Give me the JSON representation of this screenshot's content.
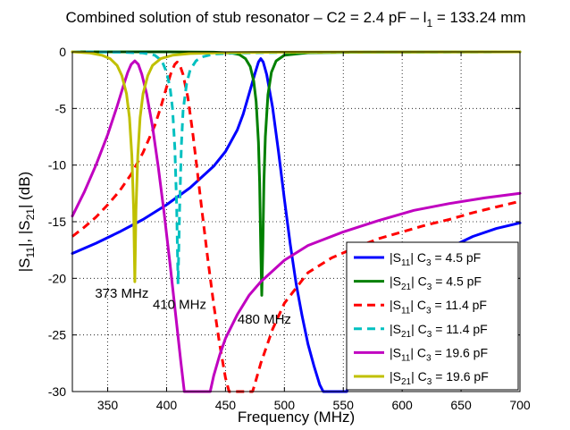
{
  "chart_data": {
    "type": "line",
    "title_parts": [
      "Combined solution of stub resonator –  C2 = 2.4 pF – l",
      "1",
      " = 133.24 mm"
    ],
    "xlabel": "Frequency (MHz)",
    "ylabel_parts": [
      "|S",
      "11",
      "|, |S",
      "21",
      "| (dB)"
    ],
    "xlim": [
      320,
      700
    ],
    "ylim": [
      -30,
      0
    ],
    "xticks": [
      350,
      400,
      450,
      500,
      550,
      600,
      650,
      700
    ],
    "yticks": [
      0,
      -5,
      -10,
      -15,
      -20,
      -25,
      -30
    ],
    "grid": "dotted",
    "legend_position": "lower-right",
    "series": [
      {
        "label_parts": [
          "|S",
          "11",
          "| C",
          "3",
          " = 4.5 pF"
        ],
        "color": "#0000ff",
        "dash": "solid",
        "points": [
          [
            320,
            -17.8
          ],
          [
            340,
            -16.9
          ],
          [
            360,
            -15.9
          ],
          [
            380,
            -14.8
          ],
          [
            400,
            -13.5
          ],
          [
            420,
            -12.0
          ],
          [
            440,
            -10.1
          ],
          [
            450,
            -8.8
          ],
          [
            460,
            -6.9
          ],
          [
            465,
            -5.5
          ],
          [
            470,
            -3.7
          ],
          [
            475,
            -1.9
          ],
          [
            478,
            -0.9
          ],
          [
            480,
            -0.6
          ],
          [
            482,
            -0.9
          ],
          [
            485,
            -2.0
          ],
          [
            490,
            -4.9
          ],
          [
            495,
            -8.8
          ],
          [
            500,
            -13.0
          ],
          [
            505,
            -17.0
          ],
          [
            510,
            -20.5
          ],
          [
            515,
            -23.3
          ],
          [
            520,
            -25.8
          ],
          [
            525,
            -27.7
          ],
          [
            530,
            -29.4
          ],
          [
            533,
            -30.0
          ],
          [
            553,
            -30.0
          ],
          [
            555,
            -29.0
          ],
          [
            560,
            -27.5
          ],
          [
            570,
            -25.0
          ],
          [
            580,
            -23.0
          ],
          [
            600,
            -20.4
          ],
          [
            620,
            -18.6
          ],
          [
            640,
            -17.3
          ],
          [
            660,
            -16.3
          ],
          [
            680,
            -15.6
          ],
          [
            700,
            -15.1
          ]
        ]
      },
      {
        "label_parts": [
          "|S",
          "21",
          "| C",
          "3",
          " = 4.5 pF"
        ],
        "color": "#008000",
        "dash": "solid",
        "points": [
          [
            320,
            0
          ],
          [
            400,
            0
          ],
          [
            440,
            -0.03
          ],
          [
            455,
            -0.1
          ],
          [
            462,
            -0.25
          ],
          [
            467,
            -0.6
          ],
          [
            471,
            -1.3
          ],
          [
            474,
            -2.6
          ],
          [
            476,
            -4.4
          ],
          [
            478,
            -8.0
          ],
          [
            479,
            -11.5
          ],
          [
            480,
            -17.5
          ],
          [
            480.8,
            -21.5
          ],
          [
            481.6,
            -17.5
          ],
          [
            482.6,
            -11.5
          ],
          [
            483.8,
            -7.5
          ],
          [
            486,
            -3.8
          ],
          [
            489,
            -1.8
          ],
          [
            493,
            -0.8
          ],
          [
            500,
            -0.3
          ],
          [
            520,
            -0.08
          ],
          [
            560,
            -0.03
          ],
          [
            700,
            0
          ]
        ]
      },
      {
        "label_parts": [
          "|S",
          "11",
          "| C",
          "3",
          " = 11.4 pF"
        ],
        "color": "#ff0000",
        "dash": "dashed",
        "points": [
          [
            320,
            -16.3
          ],
          [
            330,
            -15.5
          ],
          [
            340,
            -14.6
          ],
          [
            350,
            -13.5
          ],
          [
            360,
            -12.3
          ],
          [
            370,
            -10.8
          ],
          [
            380,
            -8.9
          ],
          [
            390,
            -6.5
          ],
          [
            395,
            -4.9
          ],
          [
            400,
            -3.1
          ],
          [
            404,
            -1.8
          ],
          [
            407,
            -1.1
          ],
          [
            409,
            -0.9
          ],
          [
            411,
            -1.1
          ],
          [
            414,
            -2.0
          ],
          [
            418,
            -4.0
          ],
          [
            422,
            -7.0
          ],
          [
            426,
            -10.5
          ],
          [
            430,
            -14.0
          ],
          [
            435,
            -18.3
          ],
          [
            440,
            -22.3
          ],
          [
            445,
            -25.8
          ],
          [
            450,
            -28.8
          ],
          [
            453,
            -30.0
          ],
          [
            473,
            -30.0
          ],
          [
            475,
            -29.3
          ],
          [
            480,
            -27.5
          ],
          [
            490,
            -24.5
          ],
          [
            500,
            -22.2
          ],
          [
            520,
            -19.5
          ],
          [
            540,
            -18.2
          ],
          [
            560,
            -17.3
          ],
          [
            580,
            -16.5
          ],
          [
            600,
            -15.9
          ],
          [
            620,
            -15.3
          ],
          [
            640,
            -14.8
          ],
          [
            660,
            -14.2
          ],
          [
            680,
            -13.7
          ],
          [
            700,
            -13.2
          ]
        ]
      },
      {
        "label_parts": [
          "|S",
          "21",
          "| C",
          "3",
          " = 11.4 pF"
        ],
        "color": "#00c0c0",
        "dash": "dashed",
        "points": [
          [
            320,
            0
          ],
          [
            360,
            -0.03
          ],
          [
            380,
            -0.1
          ],
          [
            390,
            -0.3
          ],
          [
            396,
            -0.8
          ],
          [
            400,
            -1.8
          ],
          [
            403,
            -3.2
          ],
          [
            405,
            -5.0
          ],
          [
            407,
            -8.5
          ],
          [
            408.5,
            -13.5
          ],
          [
            409.7,
            -20.5
          ],
          [
            411,
            -14.0
          ],
          [
            412.5,
            -8.3
          ],
          [
            414,
            -5.2
          ],
          [
            417,
            -2.8
          ],
          [
            420,
            -1.6
          ],
          [
            425,
            -0.8
          ],
          [
            430,
            -0.45
          ],
          [
            440,
            -0.2
          ],
          [
            460,
            -0.1
          ],
          [
            500,
            -0.05
          ],
          [
            700,
            0
          ]
        ]
      },
      {
        "label_parts": [
          "|S",
          "11",
          "| C",
          "3",
          " = 19.6 pF"
        ],
        "color": "#c000c0",
        "dash": "solid",
        "points": [
          [
            320,
            -14.5
          ],
          [
            330,
            -12.4
          ],
          [
            340,
            -10.0
          ],
          [
            350,
            -7.3
          ],
          [
            358,
            -4.8
          ],
          [
            363,
            -3.1
          ],
          [
            367,
            -1.8
          ],
          [
            370,
            -1.1
          ],
          [
            373,
            -0.8
          ],
          [
            376,
            -1.1
          ],
          [
            379,
            -2.0
          ],
          [
            383,
            -3.7
          ],
          [
            388,
            -6.6
          ],
          [
            393,
            -10.2
          ],
          [
            398,
            -14.3
          ],
          [
            403,
            -18.8
          ],
          [
            408,
            -23.5
          ],
          [
            412,
            -27.3
          ],
          [
            415,
            -30.0
          ],
          [
            437,
            -30.0
          ],
          [
            440,
            -28.6
          ],
          [
            445,
            -26.8
          ],
          [
            450,
            -25.3
          ],
          [
            460,
            -23.2
          ],
          [
            470,
            -21.5
          ],
          [
            480,
            -20.3
          ],
          [
            500,
            -18.4
          ],
          [
            520,
            -17.1
          ],
          [
            550,
            -15.9
          ],
          [
            580,
            -14.9
          ],
          [
            610,
            -14.0
          ],
          [
            640,
            -13.4
          ],
          [
            670,
            -12.9
          ],
          [
            700,
            -12.5
          ]
        ]
      },
      {
        "label_parts": [
          "|S",
          "21",
          "| C",
          "3",
          " = 19.6 pF"
        ],
        "color": "#c0c000",
        "dash": "solid",
        "points": [
          [
            320,
            0
          ],
          [
            335,
            -0.1
          ],
          [
            345,
            -0.3
          ],
          [
            352,
            -0.6
          ],
          [
            358,
            -1.2
          ],
          [
            362,
            -2.1
          ],
          [
            366,
            -3.7
          ],
          [
            368.5,
            -5.8
          ],
          [
            370.5,
            -9.2
          ],
          [
            372,
            -14.0
          ],
          [
            373,
            -20.3
          ],
          [
            374,
            -14.0
          ],
          [
            375.5,
            -9.2
          ],
          [
            377.5,
            -5.8
          ],
          [
            380,
            -3.7
          ],
          [
            384,
            -2.1
          ],
          [
            388,
            -1.2
          ],
          [
            395,
            -0.6
          ],
          [
            405,
            -0.3
          ],
          [
            420,
            -0.15
          ],
          [
            450,
            -0.07
          ],
          [
            500,
            -0.03
          ],
          [
            700,
            0
          ]
        ]
      }
    ],
    "annotations": [
      {
        "text": "373 MHz",
        "x": 362,
        "y": -21.3
      },
      {
        "text": "410 MHz",
        "x": 411,
        "y": -22.3
      },
      {
        "text": "480 MHz",
        "x": 483,
        "y": -23.6
      }
    ]
  }
}
